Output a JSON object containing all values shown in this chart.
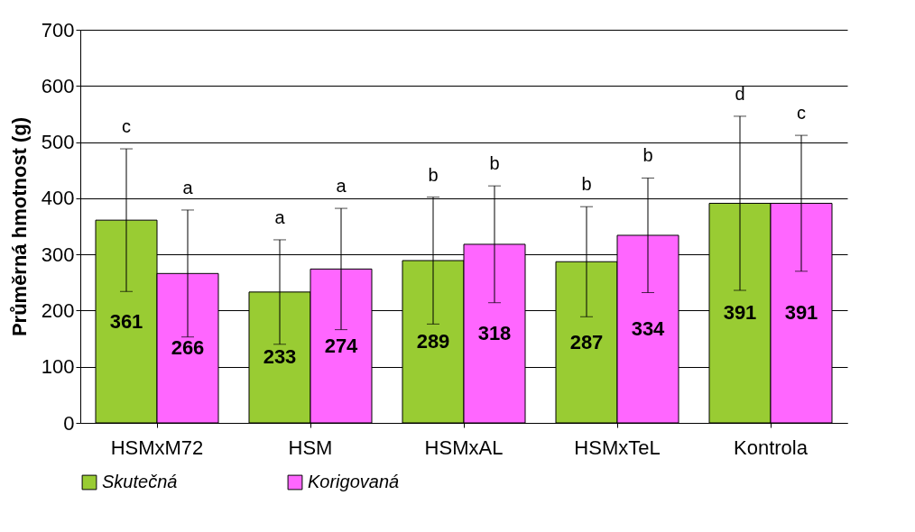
{
  "chart_data": {
    "type": "bar",
    "ylabel": "Průměrná hmotnost (g)",
    "categories": [
      "HSMxM72",
      "HSM",
      "HSMxAL",
      "HSMxTeL",
      "Kontrola"
    ],
    "series": [
      {
        "name": "Skutečná",
        "color": "#99cc33",
        "values": [
          361,
          233,
          289,
          287,
          391
        ],
        "errors": [
          127,
          93,
          113,
          98,
          155
        ]
      },
      {
        "name": "Korigovaná",
        "color": "#ff66ff",
        "values": [
          266,
          274,
          318,
          334,
          391
        ],
        "errors": [
          113,
          108,
          104,
          102,
          121
        ]
      }
    ],
    "ylim": [
      0,
      700
    ],
    "yticks": [
      0,
      100,
      200,
      300,
      400,
      500,
      600,
      700
    ],
    "grid": "y",
    "legend": "bottom",
    "data_labels": true,
    "annotations": [
      "c",
      "a",
      "a",
      "a",
      "b",
      "b",
      "b",
      "b",
      "d",
      "c"
    ]
  }
}
